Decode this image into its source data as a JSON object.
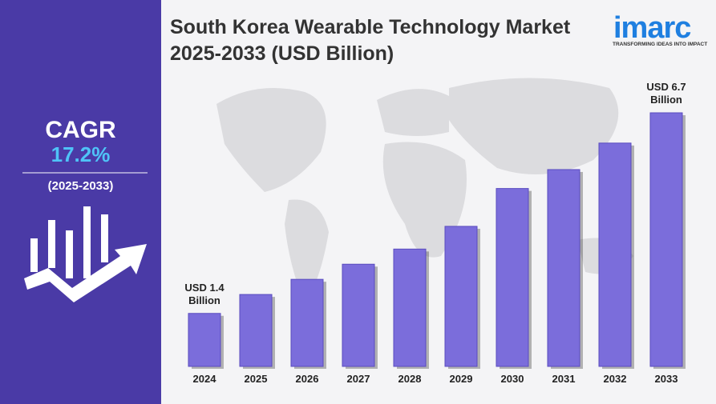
{
  "chart_data": {
    "type": "bar",
    "title": "South Korea Wearable Technology Market 2025-2033 (USD Billion)",
    "categories": [
      "2024",
      "2025",
      "2026",
      "2027",
      "2028",
      "2029",
      "2030",
      "2031",
      "2032",
      "2033"
    ],
    "values": [
      1.4,
      1.9,
      2.3,
      2.7,
      3.1,
      3.7,
      4.7,
      5.2,
      5.9,
      6.7
    ],
    "value_labels": [
      "USD 1.4 Billion",
      null,
      null,
      null,
      null,
      null,
      null,
      null,
      null,
      "USD 6.7 Billion"
    ],
    "color": "#7b6ddb"
  },
  "sidebar": {
    "label": "CAGR",
    "value": "17.2%",
    "period": "(2025-2033)"
  },
  "logo": {
    "name": "imarc",
    "tagline": "TRANSFORMING IDEAS INTO IMPACT"
  }
}
